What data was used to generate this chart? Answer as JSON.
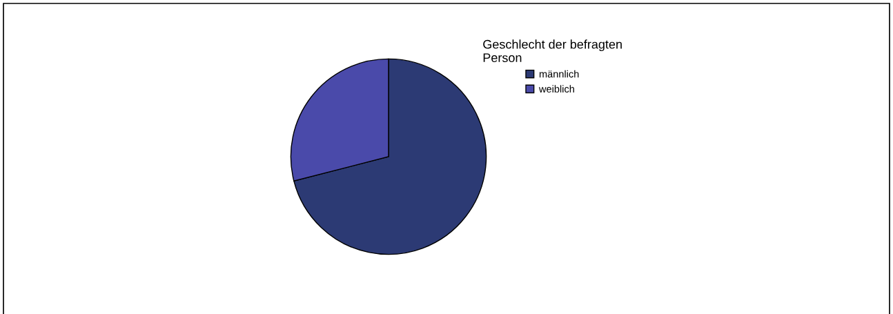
{
  "chart_data": {
    "type": "pie",
    "legend_title": "Geschlecht der befragten Person",
    "categories": [
      "männlich",
      "weiblich"
    ],
    "values": [
      71,
      29
    ],
    "colors": [
      "#2c3a74",
      "#4a4aaa"
    ],
    "legend": "top right"
  }
}
